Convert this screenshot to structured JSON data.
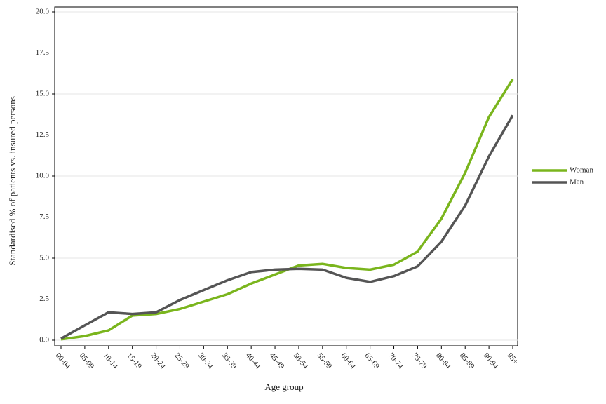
{
  "chart_data": {
    "type": "line",
    "xlabel": "Age group",
    "ylabel": "Standardised % of patients vs. insured persons",
    "categories": [
      "00-04",
      "05-09",
      "10-14",
      "15-19",
      "20-24",
      "25-29",
      "30-34",
      "35-39",
      "40-44",
      "45-49",
      "50-54",
      "55-59",
      "60-64",
      "65-69",
      "70-74",
      "75-79",
      "80-84",
      "85-89",
      "90-94",
      "95+"
    ],
    "series": [
      {
        "name": "Woman",
        "color": "#7ab51d",
        "values": [
          0.05,
          0.25,
          0.6,
          1.5,
          1.6,
          1.9,
          2.35,
          2.8,
          3.45,
          4.0,
          4.55,
          4.65,
          4.4,
          4.3,
          4.6,
          5.4,
          7.4,
          10.2,
          13.6,
          15.9
        ]
      },
      {
        "name": "Man",
        "color": "#555555",
        "values": [
          0.1,
          0.9,
          1.7,
          1.6,
          1.7,
          2.45,
          3.05,
          3.65,
          4.15,
          4.3,
          4.35,
          4.3,
          3.8,
          3.55,
          3.9,
          4.5,
          6.0,
          8.2,
          11.2,
          13.7
        ]
      }
    ],
    "ylim": [
      0,
      20
    ],
    "yticks": [
      {
        "value": 0,
        "label": "0.0"
      },
      2.5,
      {
        "value": 5,
        "label": "5.0"
      },
      7.5,
      {
        "value": 10,
        "label": "10.0"
      },
      12.5,
      {
        "value": 15,
        "label": "15.0"
      },
      17.5,
      {
        "value": 20,
        "label": "20.0"
      }
    ],
    "grid": true,
    "legend": "right"
  }
}
